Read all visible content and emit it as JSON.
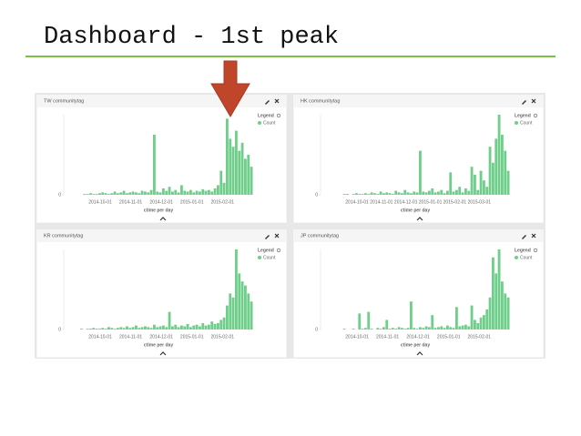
{
  "slide_title": "Dashboard - 1st peak",
  "chart_data": [
    {
      "type": "bar",
      "title": "TW communitytag",
      "xlabel": "ctime per day",
      "legend_title": "Legend",
      "x_tick_labels": [
        "2014-10-01",
        "2014-11-01",
        "2014-12-01",
        "2015-01-01",
        "2015-02-01"
      ],
      "ylim": [
        0,
        100
      ],
      "yticks": [
        0
      ],
      "series": [
        {
          "name": "Count",
          "color": "#6fcf8a",
          "values": [
            0,
            0,
            0,
            0,
            1,
            1,
            2,
            1,
            1,
            2,
            3,
            2,
            1,
            2,
            4,
            2,
            3,
            5,
            2,
            3,
            4,
            3,
            2,
            5,
            4,
            3,
            6,
            75,
            4,
            3,
            8,
            5,
            10,
            4,
            6,
            3,
            12,
            5,
            4,
            6,
            3,
            5,
            4,
            7,
            5,
            6,
            4,
            8,
            12,
            30,
            15,
            95,
            70,
            60,
            80,
            55,
            65,
            45,
            50,
            35
          ]
        }
      ]
    },
    {
      "type": "bar",
      "title": "HK communitytag",
      "xlabel": "ctime per day",
      "legend_title": "Legend",
      "x_tick_labels": [
        "2014-10-01",
        "2014-11-01",
        "2014-12-01",
        "2015-01-01",
        "2015-02-01",
        "2015-03-01"
      ],
      "ylim": [
        0,
        100
      ],
      "yticks": [
        0
      ],
      "series": [
        {
          "name": "Count",
          "color": "#6fcf8a",
          "values": [
            0,
            0,
            0,
            0,
            0,
            1,
            1,
            0,
            1,
            2,
            1,
            1,
            2,
            1,
            3,
            2,
            1,
            4,
            2,
            3,
            2,
            1,
            5,
            3,
            2,
            6,
            3,
            2,
            4,
            3,
            55,
            4,
            3,
            5,
            8,
            3,
            4,
            6,
            2,
            5,
            28,
            4,
            6,
            10,
            3,
            8,
            5,
            35,
            25,
            6,
            30,
            18,
            10,
            60,
            40,
            70,
            100,
            75,
            55,
            30
          ]
        }
      ]
    },
    {
      "type": "bar",
      "title": "KR communitytag",
      "xlabel": "ctime per day",
      "legend_title": "Legend",
      "x_tick_labels": [
        "2014-10-01",
        "2014-11-01",
        "2014-12-01",
        "2015-01-01",
        "2015-02-01"
      ],
      "ylim": [
        0,
        100
      ],
      "yticks": [
        0
      ],
      "series": [
        {
          "name": "Count",
          "color": "#6fcf8a",
          "values": [
            0,
            0,
            0,
            1,
            0,
            1,
            1,
            2,
            1,
            1,
            2,
            1,
            3,
            2,
            1,
            2,
            3,
            2,
            4,
            2,
            3,
            5,
            2,
            3,
            4,
            3,
            2,
            6,
            3,
            4,
            5,
            3,
            22,
            4,
            6,
            3,
            5,
            4,
            7,
            3,
            5,
            6,
            4,
            8,
            5,
            6,
            10,
            7,
            8,
            12,
            15,
            30,
            45,
            40,
            100,
            70,
            60,
            55,
            45,
            35
          ]
        }
      ]
    },
    {
      "type": "bar",
      "title": "JP communitytag",
      "xlabel": "ctime per day",
      "legend_title": "Legend",
      "x_tick_labels": [
        "2014-10-01",
        "2014-11-01",
        "2014-12-01",
        "2015-01-01",
        "2015-02-01"
      ],
      "ylim": [
        0,
        100
      ],
      "yticks": [
        0
      ],
      "series": [
        {
          "name": "Count",
          "color": "#6fcf8a",
          "values": [
            0,
            0,
            0,
            0,
            0,
            1,
            0,
            0,
            1,
            0,
            20,
            1,
            2,
            22,
            1,
            0,
            2,
            1,
            3,
            12,
            1,
            2,
            1,
            3,
            2,
            1,
            2,
            35,
            2,
            1,
            3,
            2,
            4,
            3,
            18,
            2,
            3,
            4,
            2,
            5,
            3,
            2,
            28,
            4,
            5,
            6,
            4,
            30,
            12,
            8,
            15,
            18,
            25,
            40,
            90,
            70,
            100,
            60,
            45,
            40
          ]
        }
      ]
    }
  ]
}
